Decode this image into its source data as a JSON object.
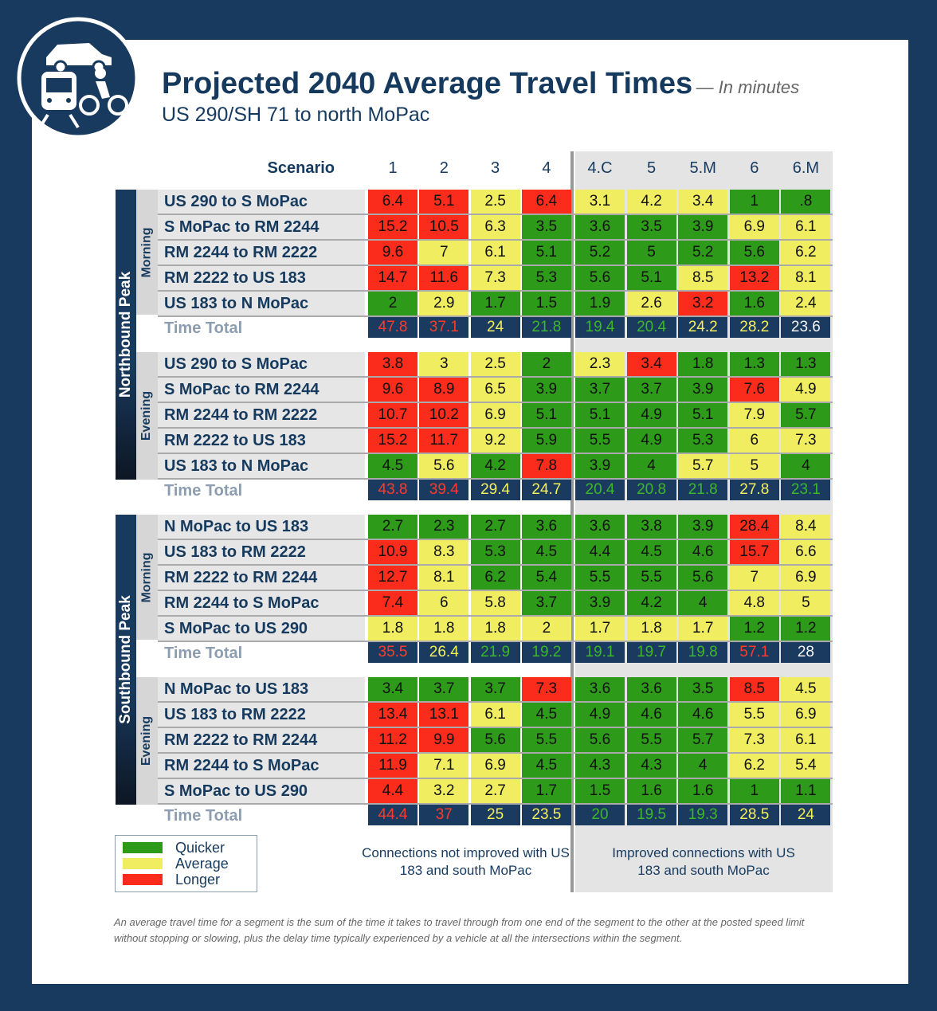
{
  "header": {
    "title": "Projected 2040 Average Travel Times",
    "unit_note": "— In minutes",
    "subtitle": "US 290/SH 71 to north MoPac"
  },
  "table": {
    "scenario_label": "Scenario",
    "scenarios": [
      "1",
      "2",
      "3",
      "4",
      "4.C",
      "5",
      "5.M",
      "6",
      "6.M"
    ],
    "directions": [
      {
        "name": "Northbound Peak",
        "periods": [
          {
            "name": "Morning",
            "rows": [
              {
                "label": "US 290 to S MoPac",
                "values": [
                  "6.4",
                  "5.1",
                  "2.5",
                  "6.4",
                  "3.1",
                  "4.2",
                  "3.4",
                  "1",
                  ".8"
                ],
                "colors": [
                  "red",
                  "red",
                  "yellow",
                  "red",
                  "yellow",
                  "yellow",
                  "yellow",
                  "green",
                  "green"
                ]
              },
              {
                "label": "S MoPac to RM 2244",
                "values": [
                  "15.2",
                  "10.5",
                  "6.3",
                  "3.5",
                  "3.6",
                  "3.5",
                  "3.9",
                  "6.9",
                  "6.1"
                ],
                "colors": [
                  "red",
                  "red",
                  "yellow",
                  "green",
                  "green",
                  "green",
                  "green",
                  "yellow",
                  "yellow"
                ]
              },
              {
                "label": "RM 2244 to RM 2222",
                "values": [
                  "9.6",
                  "7",
                  "6.1",
                  "5.1",
                  "5.2",
                  "5",
                  "5.2",
                  "5.6",
                  "6.2"
                ],
                "colors": [
                  "red",
                  "yellow",
                  "yellow",
                  "green",
                  "green",
                  "green",
                  "green",
                  "green",
                  "yellow"
                ]
              },
              {
                "label": "RM 2222 to US 183",
                "values": [
                  "14.7",
                  "11.6",
                  "7.3",
                  "5.3",
                  "5.6",
                  "5.1",
                  "8.5",
                  "13.2",
                  "8.1"
                ],
                "colors": [
                  "red",
                  "red",
                  "yellow",
                  "green",
                  "green",
                  "green",
                  "yellow",
                  "red",
                  "yellow"
                ]
              },
              {
                "label": "US 183 to N MoPac",
                "values": [
                  "2",
                  "2.9",
                  "1.7",
                  "1.5",
                  "1.9",
                  "2.6",
                  "3.2",
                  "1.6",
                  "2.4"
                ],
                "colors": [
                  "green",
                  "yellow",
                  "green",
                  "green",
                  "green",
                  "yellow",
                  "red",
                  "green",
                  "yellow"
                ]
              }
            ],
            "total": {
              "label": "Time Total",
              "values": [
                "47.8",
                "37.1",
                "24",
                "21.8",
                "19.4",
                "20.4",
                "24.2",
                "28.2",
                "23.6"
              ],
              "colors": [
                "red",
                "red",
                "yellow",
                "green",
                "green",
                "green",
                "yellow",
                "yellow",
                "white"
              ]
            }
          },
          {
            "name": "Evening",
            "rows": [
              {
                "label": "US 290 to S MoPac",
                "values": [
                  "3.8",
                  "3",
                  "2.5",
                  "2",
                  "2.3",
                  "3.4",
                  "1.8",
                  "1.3",
                  "1.3"
                ],
                "colors": [
                  "red",
                  "yellow",
                  "yellow",
                  "green",
                  "yellow",
                  "red",
                  "green",
                  "green",
                  "green"
                ]
              },
              {
                "label": "S MoPac to RM 2244",
                "values": [
                  "9.6",
                  "8.9",
                  "6.5",
                  "3.9",
                  "3.7",
                  "3.7",
                  "3.9",
                  "7.6",
                  "4.9"
                ],
                "colors": [
                  "red",
                  "red",
                  "yellow",
                  "green",
                  "green",
                  "green",
                  "green",
                  "red",
                  "yellow"
                ]
              },
              {
                "label": "RM 2244 to RM 2222",
                "values": [
                  "10.7",
                  "10.2",
                  "6.9",
                  "5.1",
                  "5.1",
                  "4.9",
                  "5.1",
                  "7.9",
                  "5.7"
                ],
                "colors": [
                  "red",
                  "red",
                  "yellow",
                  "green",
                  "green",
                  "green",
                  "green",
                  "yellow",
                  "green"
                ]
              },
              {
                "label": "RM 2222 to US 183",
                "values": [
                  "15.2",
                  "11.7",
                  "9.2",
                  "5.9",
                  "5.5",
                  "4.9",
                  "5.3",
                  "6",
                  "7.3"
                ],
                "colors": [
                  "red",
                  "red",
                  "yellow",
                  "green",
                  "green",
                  "green",
                  "green",
                  "yellow",
                  "yellow"
                ]
              },
              {
                "label": "US 183 to N MoPac",
                "values": [
                  "4.5",
                  "5.6",
                  "4.2",
                  "7.8",
                  "3.9",
                  "4",
                  "5.7",
                  "5",
                  "4"
                ],
                "colors": [
                  "green",
                  "yellow",
                  "green",
                  "red",
                  "green",
                  "green",
                  "yellow",
                  "yellow",
                  "green"
                ]
              }
            ],
            "total": {
              "label": "Time Total",
              "values": [
                "43.8",
                "39.4",
                "29.4",
                "24.7",
                "20.4",
                "20.8",
                "21.8",
                "27.8",
                "23.1"
              ],
              "colors": [
                "red",
                "red",
                "yellow",
                "yellow",
                "green",
                "green",
                "green",
                "yellow",
                "green"
              ]
            }
          }
        ]
      },
      {
        "name": "Southbound Peak",
        "periods": [
          {
            "name": "Morning",
            "rows": [
              {
                "label": "N MoPac to US 183",
                "values": [
                  "2.7",
                  "2.3",
                  "2.7",
                  "3.6",
                  "3.6",
                  "3.8",
                  "3.9",
                  "28.4",
                  "8.4"
                ],
                "colors": [
                  "green",
                  "green",
                  "green",
                  "green",
                  "green",
                  "green",
                  "green",
                  "red",
                  "yellow"
                ]
              },
              {
                "label": "US 183 to RM 2222",
                "values": [
                  "10.9",
                  "8.3",
                  "5.3",
                  "4.5",
                  "4.4",
                  "4.5",
                  "4.6",
                  "15.7",
                  "6.6"
                ],
                "colors": [
                  "red",
                  "yellow",
                  "green",
                  "green",
                  "green",
                  "green",
                  "green",
                  "red",
                  "yellow"
                ]
              },
              {
                "label": "RM 2222 to RM 2244",
                "values": [
                  "12.7",
                  "8.1",
                  "6.2",
                  "5.4",
                  "5.5",
                  "5.5",
                  "5.6",
                  "7",
                  "6.9"
                ],
                "colors": [
                  "red",
                  "yellow",
                  "green",
                  "green",
                  "green",
                  "green",
                  "green",
                  "yellow",
                  "yellow"
                ]
              },
              {
                "label": "RM 2244 to S MoPac",
                "values": [
                  "7.4",
                  "6",
                  "5.8",
                  "3.7",
                  "3.9",
                  "4.2",
                  "4",
                  "4.8",
                  "5"
                ],
                "colors": [
                  "red",
                  "yellow",
                  "yellow",
                  "green",
                  "green",
                  "green",
                  "green",
                  "yellow",
                  "yellow"
                ]
              },
              {
                "label": "S MoPac to US 290",
                "values": [
                  "1.8",
                  "1.8",
                  "1.8",
                  "2",
                  "1.7",
                  "1.8",
                  "1.7",
                  "1.2",
                  "1.2"
                ],
                "colors": [
                  "yellow",
                  "yellow",
                  "yellow",
                  "yellow",
                  "yellow",
                  "yellow",
                  "yellow",
                  "green",
                  "green"
                ]
              }
            ],
            "total": {
              "label": "Time Total",
              "values": [
                "35.5",
                "26.4",
                "21.9",
                "19.2",
                "19.1",
                "19.7",
                "19.8",
                "57.1",
                "28"
              ],
              "colors": [
                "red",
                "yellow",
                "green",
                "green",
                "green",
                "green",
                "green",
                "red",
                "white"
              ]
            }
          },
          {
            "name": "Evening",
            "rows": [
              {
                "label": "N MoPac to US 183",
                "values": [
                  "3.4",
                  "3.7",
                  "3.7",
                  "7.3",
                  "3.6",
                  "3.6",
                  "3.5",
                  "8.5",
                  "4.5"
                ],
                "colors": [
                  "green",
                  "green",
                  "green",
                  "red",
                  "green",
                  "green",
                  "green",
                  "red",
                  "yellow"
                ]
              },
              {
                "label": "US 183 to RM 2222",
                "values": [
                  "13.4",
                  "13.1",
                  "6.1",
                  "4.5",
                  "4.9",
                  "4.6",
                  "4.6",
                  "5.5",
                  "6.9"
                ],
                "colors": [
                  "red",
                  "red",
                  "yellow",
                  "green",
                  "green",
                  "green",
                  "green",
                  "yellow",
                  "yellow"
                ]
              },
              {
                "label": "RM 2222 to RM 2244",
                "values": [
                  "11.2",
                  "9.9",
                  "5.6",
                  "5.5",
                  "5.6",
                  "5.5",
                  "5.7",
                  "7.3",
                  "6.1"
                ],
                "colors": [
                  "red",
                  "red",
                  "green",
                  "green",
                  "green",
                  "green",
                  "green",
                  "yellow",
                  "yellow"
                ]
              },
              {
                "label": "RM 2244 to S MoPac",
                "values": [
                  "11.9",
                  "7.1",
                  "6.9",
                  "4.5",
                  "4.3",
                  "4.3",
                  "4",
                  "6.2",
                  "5.4"
                ],
                "colors": [
                  "red",
                  "yellow",
                  "yellow",
                  "green",
                  "green",
                  "green",
                  "green",
                  "yellow",
                  "yellow"
                ]
              },
              {
                "label": "S MoPac to US 290",
                "values": [
                  "4.4",
                  "3.2",
                  "2.7",
                  "1.7",
                  "1.5",
                  "1.6",
                  "1.6",
                  "1",
                  "1.1"
                ],
                "colors": [
                  "red",
                  "yellow",
                  "yellow",
                  "green",
                  "green",
                  "green",
                  "green",
                  "green",
                  "green"
                ]
              }
            ],
            "total": {
              "label": "Time Total",
              "values": [
                "44.4",
                "37",
                "25",
                "23.5",
                "20",
                "19.5",
                "19.3",
                "28.5",
                "24"
              ],
              "colors": [
                "red",
                "red",
                "yellow",
                "yellow",
                "green",
                "green",
                "green",
                "yellow",
                "yellow"
              ]
            }
          }
        ]
      }
    ]
  },
  "legend": [
    {
      "label": "Quicker",
      "color": "green"
    },
    {
      "label": "Average",
      "color": "yellow"
    },
    {
      "label": "Longer",
      "color": "red"
    }
  ],
  "notes": [
    "Connections not improved with US 183 and south MoPac",
    "Improved connections with US 183 and south MoPac"
  ],
  "footnote": "An average travel time for a segment is the sum of the time it takes to travel through from one end of the segment to the other at the posted speed limit without stopping or slowing, plus the delay time typically experienced by a vehicle at all the intersections within the segment."
}
